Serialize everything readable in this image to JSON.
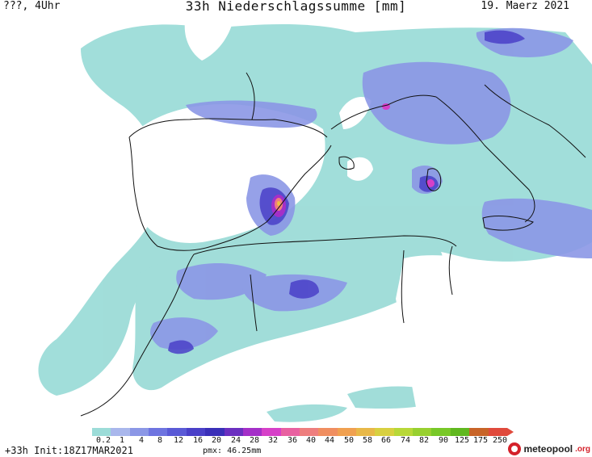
{
  "header": {
    "left": "???, 4Uhr",
    "title": "33h Niederschlagssumme [mm]",
    "date": "19. Maerz 2021"
  },
  "legend": {
    "labels": [
      "0.2",
      "1",
      "4",
      "8",
      "12",
      "16",
      "20",
      "24",
      "28",
      "32",
      "36",
      "40",
      "44",
      "50",
      "58",
      "66",
      "74",
      "82",
      "90",
      "125",
      "175",
      "250"
    ],
    "colors": [
      "#9cdcd8",
      "#a9b7ec",
      "#8b97e6",
      "#6e74e0",
      "#5a5ad6",
      "#4a40c8",
      "#3a2fb8",
      "#6b2fc0",
      "#a42fc8",
      "#d640c8",
      "#e860a0",
      "#ee7e7e",
      "#f08e60",
      "#f0a050",
      "#e8b848",
      "#d8d040",
      "#b8d838",
      "#98d030",
      "#78c828",
      "#60b820",
      "#c86428",
      "#e04a3c"
    ]
  },
  "footer": {
    "run": "+33h Init:18Z17MAR2021",
    "pmax": "pmx: 46.25mm"
  },
  "logo": {
    "name": "meteopool",
    "tld": ".org"
  },
  "colors": {
    "light": "#9cdcd8",
    "mid": "#8b97e6",
    "strong": "#5a5ad6",
    "deep": "#3a2fb8",
    "peak": "#d640c8"
  }
}
